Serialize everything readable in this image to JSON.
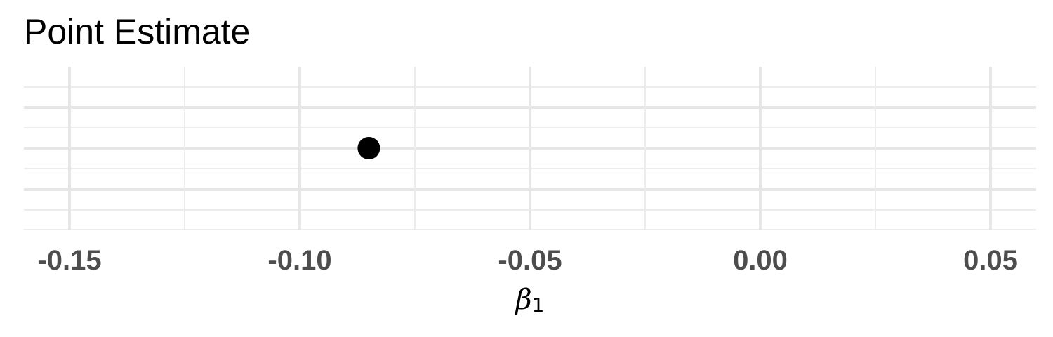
{
  "chart_data": {
    "type": "scatter",
    "title": "Point Estimate",
    "xlabel": "β",
    "xlabel_subscript": "1",
    "ylabel": "",
    "xlim": [
      -0.17,
      0.06
    ],
    "x_ticks": [
      -0.15,
      -0.1,
      -0.05,
      0.0,
      0.05
    ],
    "x_tick_labels": [
      "-0.15",
      "-0.10",
      "-0.05",
      "0.00",
      "0.05"
    ],
    "points": [
      {
        "x": -0.085,
        "y": 0
      }
    ],
    "grid": true,
    "legend": "none",
    "colors": {
      "point": "#000000",
      "grid": "#e6e6e6",
      "tick_text": "#4d4d4d"
    }
  }
}
